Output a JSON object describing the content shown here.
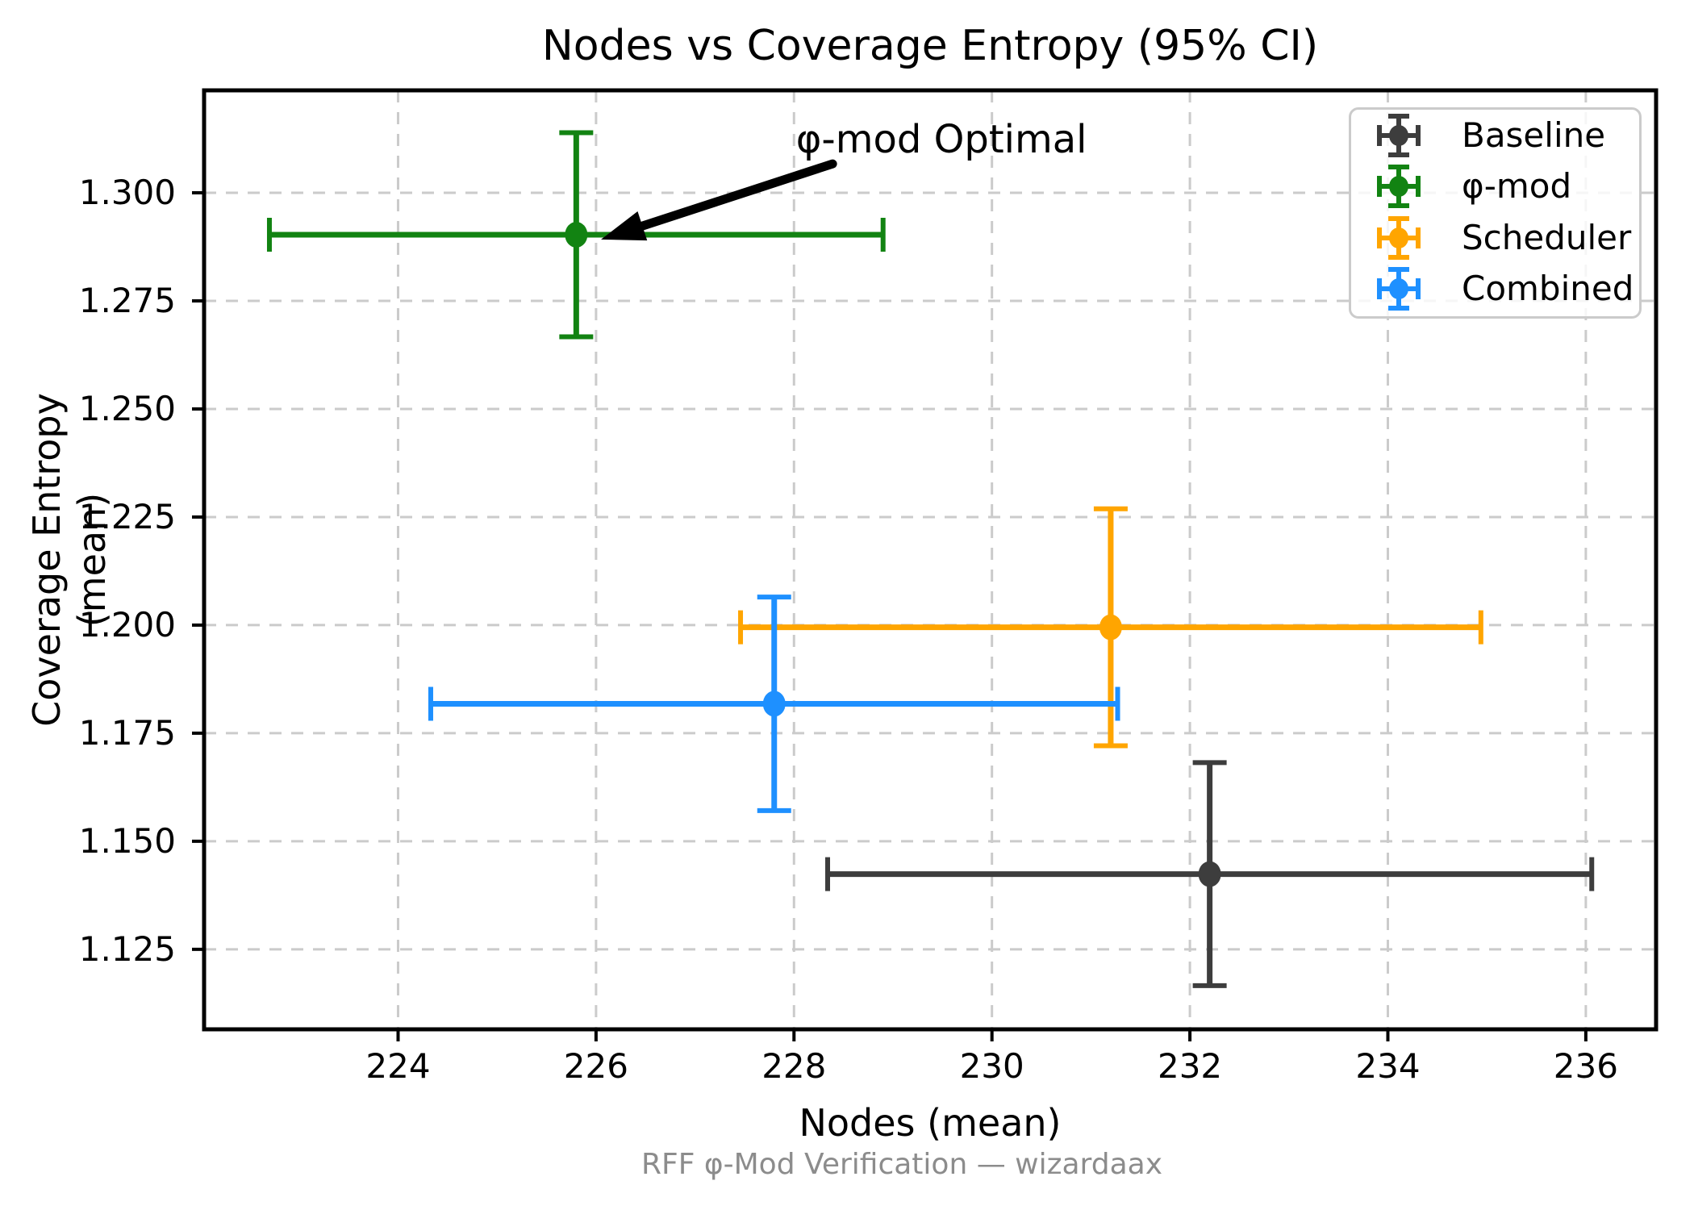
{
  "chart_data": {
    "type": "scatter",
    "title": "Nodes vs Coverage Entropy (95% CI)",
    "xlabel": "Nodes (mean)",
    "ylabel": "Coverage Entropy (mean)",
    "footer": "RFF φ-Mod Verification — wizardaax",
    "xlim": [
      222.04,
      236.71
    ],
    "ylim": [
      1.1065,
      1.3237
    ],
    "x_ticks": [
      224,
      226,
      228,
      230,
      232,
      234,
      236
    ],
    "y_ticks": [
      1.125,
      1.15,
      1.175,
      1.2,
      1.225,
      1.25,
      1.275,
      1.3
    ],
    "grid": true,
    "grid_style": "dashed",
    "legend_position": "upper right",
    "series": [
      {
        "name": "Baseline",
        "color": "#3D3D3D",
        "x": 232.2,
        "y": 1.1424,
        "xerr": 3.86,
        "yerr": 0.0258
      },
      {
        "name": "φ-mod",
        "color": "#128312",
        "x": 225.8,
        "y": 1.2903,
        "xerr": 3.1,
        "yerr": 0.0236
      },
      {
        "name": "Scheduler",
        "color": "#FFA500",
        "x": 231.2,
        "y": 1.1995,
        "xerr": 3.74,
        "yerr": 0.0274
      },
      {
        "name": "Combined",
        "color": "#1E90FF",
        "x": 227.8,
        "y": 1.1818,
        "xerr": 3.47,
        "yerr": 0.0247
      }
    ],
    "annotation": {
      "text": "φ-mod Optimal",
      "text_pos": [
        228.02,
        1.3174
      ],
      "arrow_tail": [
        228.39,
        1.3067
      ],
      "arrow_tip": [
        226.05,
        1.2892
      ]
    }
  },
  "colors": {
    "grid": "#CBCBCB",
    "axis": "#000000",
    "footer_text": "#8C8C8C",
    "legend_border": "#CBCBCB",
    "annotation_arrow": "#000000"
  }
}
